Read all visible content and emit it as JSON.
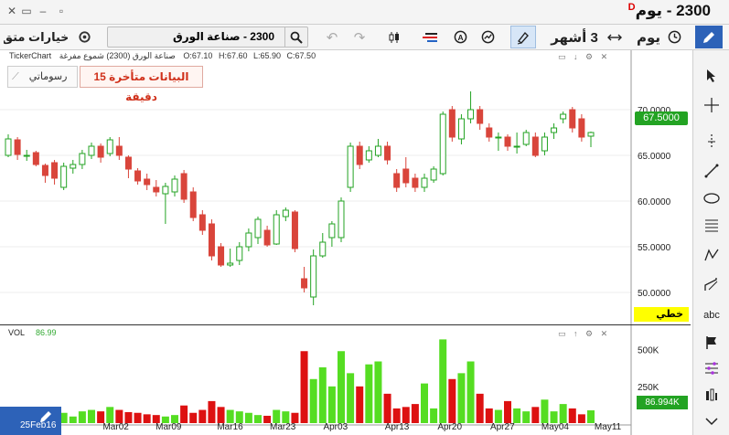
{
  "window": {
    "title": "2300 - يوم",
    "delay_flag": "D",
    "left_tab": "خيارات متق"
  },
  "toolbar": {
    "symbol_text": "2300 - صناعة الورق",
    "period": "3 أشهر",
    "interval": "يوم"
  },
  "chart_info": {
    "source": "TickerChart",
    "desc": "صناعة الورق (2300) شموع مفرغة",
    "open": "O:67.10",
    "high": "H:67.60",
    "low": "L:65.90",
    "close": "C:67.50",
    "delayed_label": "البيانات متأخرة 15 دقيقة",
    "visual_label": "رسوماتي",
    "linear_label": "خطي",
    "vol_label": "VOL",
    "vol_value": "86.99",
    "last_price": "67.5000",
    "last_vol": "86.994K",
    "scroll_text": "25Feb16"
  },
  "colors": {
    "up": "#23a323",
    "down": "#d9453b",
    "vol_up": "#55dd22",
    "vol_down": "#dd1111",
    "accent": "#2d62b8"
  },
  "chart_data": {
    "type": "candlestick",
    "y_ticks": [
      "70.0000",
      "65.0000",
      "60.0000",
      "55.0000",
      "50.0000"
    ],
    "y_range": [
      46.5,
      72.5
    ],
    "vol_ticks": [
      "500K",
      "250K"
    ],
    "vol_range": [
      0,
      560
    ],
    "x_ticks": [
      "Mar02",
      "Mar09",
      "Mar16",
      "Mar23",
      "Apr03",
      "Apr13",
      "Apr20",
      "Apr27",
      "May04",
      "May11"
    ],
    "candles": [
      {
        "o": 65.0,
        "c": 66.8,
        "h": 67.3,
        "l": 64.8,
        "v": 40
      },
      {
        "o": 66.7,
        "c": 65.1,
        "h": 67.0,
        "l": 64.5,
        "v": 45
      },
      {
        "o": 65.0,
        "c": 65.0,
        "h": 65.6,
        "l": 64.4,
        "v": 30
      },
      {
        "o": 65.3,
        "c": 64.0,
        "h": 65.5,
        "l": 63.8,
        "v": 35
      },
      {
        "o": 63.9,
        "c": 62.8,
        "h": 64.1,
        "l": 62.0,
        "v": 60
      },
      {
        "o": 64.2,
        "c": 62.5,
        "h": 64.5,
        "l": 61.8,
        "v": 50
      },
      {
        "o": 61.5,
        "c": 63.8,
        "h": 64.2,
        "l": 61.2,
        "v": 70
      },
      {
        "o": 63.6,
        "c": 64.0,
        "h": 64.5,
        "l": 63.0,
        "v": 45
      },
      {
        "o": 64.0,
        "c": 65.2,
        "h": 65.6,
        "l": 63.5,
        "v": 80
      },
      {
        "o": 65.0,
        "c": 66.0,
        "h": 66.4,
        "l": 64.6,
        "v": 90
      },
      {
        "o": 66.0,
        "c": 64.8,
        "h": 66.3,
        "l": 64.2,
        "v": 80
      },
      {
        "o": 65.2,
        "c": 66.7,
        "h": 67.0,
        "l": 64.9,
        "v": 110
      },
      {
        "o": 66.0,
        "c": 65.0,
        "h": 67.0,
        "l": 64.5,
        "v": 90
      },
      {
        "o": 64.8,
        "c": 63.5,
        "h": 65.0,
        "l": 62.5,
        "v": 75
      },
      {
        "o": 63.3,
        "c": 62.2,
        "h": 63.6,
        "l": 61.8,
        "v": 70
      },
      {
        "o": 62.4,
        "c": 61.8,
        "h": 63.0,
        "l": 61.2,
        "v": 60
      },
      {
        "o": 61.5,
        "c": 61.0,
        "h": 62.3,
        "l": 60.5,
        "v": 55
      },
      {
        "o": 60.8,
        "c": 61.6,
        "h": 62.0,
        "l": 57.5,
        "v": 45
      },
      {
        "o": 61.0,
        "c": 62.4,
        "h": 62.8,
        "l": 60.5,
        "v": 55
      },
      {
        "o": 63.0,
        "c": 60.2,
        "h": 63.4,
        "l": 59.8,
        "v": 120
      },
      {
        "o": 61.0,
        "c": 58.2,
        "h": 61.5,
        "l": 57.8,
        "v": 70
      },
      {
        "o": 58.5,
        "c": 56.8,
        "h": 59.0,
        "l": 56.3,
        "v": 90
      },
      {
        "o": 57.5,
        "c": 54.0,
        "h": 58.0,
        "l": 53.5,
        "v": 150
      },
      {
        "o": 55.0,
        "c": 53.0,
        "h": 55.4,
        "l": 52.8,
        "v": 110
      },
      {
        "o": 53.0,
        "c": 53.2,
        "h": 54.8,
        "l": 52.8,
        "v": 90
      },
      {
        "o": 53.5,
        "c": 55.0,
        "h": 55.5,
        "l": 53.0,
        "v": 80
      },
      {
        "o": 55.0,
        "c": 56.5,
        "h": 57.0,
        "l": 54.5,
        "v": 70
      },
      {
        "o": 56.0,
        "c": 58.0,
        "h": 58.3,
        "l": 55.3,
        "v": 55
      },
      {
        "o": 56.8,
        "c": 55.2,
        "h": 57.3,
        "l": 55.0,
        "v": 50
      },
      {
        "o": 55.3,
        "c": 58.5,
        "h": 59.0,
        "l": 55.2,
        "v": 90
      },
      {
        "o": 58.3,
        "c": 59.0,
        "h": 59.3,
        "l": 57.8,
        "v": 80
      },
      {
        "o": 58.8,
        "c": 54.8,
        "h": 59.0,
        "l": 54.4,
        "v": 70
      },
      {
        "o": 51.5,
        "c": 50.5,
        "h": 52.8,
        "l": 50.0,
        "v": 490
      },
      {
        "o": 49.5,
        "c": 54.0,
        "h": 54.7,
        "l": 48.6,
        "v": 300
      },
      {
        "o": 54.0,
        "c": 55.5,
        "h": 56.5,
        "l": 53.8,
        "v": 380
      },
      {
        "o": 56.0,
        "c": 57.5,
        "h": 57.8,
        "l": 55.0,
        "v": 250
      },
      {
        "o": 56.0,
        "c": 60.0,
        "h": 60.4,
        "l": 55.5,
        "v": 490
      },
      {
        "o": 61.5,
        "c": 66.0,
        "h": 66.4,
        "l": 61.0,
        "v": 340
      },
      {
        "o": 66.0,
        "c": 64.0,
        "h": 66.5,
        "l": 63.5,
        "v": 250
      },
      {
        "o": 64.5,
        "c": 65.5,
        "h": 66.0,
        "l": 64.2,
        "v": 400
      },
      {
        "o": 65.0,
        "c": 66.0,
        "h": 66.8,
        "l": 64.8,
        "v": 420
      },
      {
        "o": 66.0,
        "c": 64.5,
        "h": 66.5,
        "l": 64.0,
        "v": 200
      },
      {
        "o": 63.0,
        "c": 61.5,
        "h": 63.5,
        "l": 61.0,
        "v": 100
      },
      {
        "o": 63.5,
        "c": 62.0,
        "h": 64.8,
        "l": 61.5,
        "v": 110
      },
      {
        "o": 62.5,
        "c": 61.5,
        "h": 63.0,
        "l": 61.0,
        "v": 130
      },
      {
        "o": 61.5,
        "c": 62.5,
        "h": 63.0,
        "l": 61.0,
        "v": 270
      },
      {
        "o": 62.3,
        "c": 63.5,
        "h": 63.8,
        "l": 62.0,
        "v": 100
      },
      {
        "o": 63.0,
        "c": 69.5,
        "h": 69.8,
        "l": 62.8,
        "v": 570
      },
      {
        "o": 70.0,
        "c": 67.0,
        "h": 70.4,
        "l": 66.5,
        "v": 300
      },
      {
        "o": 66.8,
        "c": 69.0,
        "h": 69.5,
        "l": 66.2,
        "v": 340
      },
      {
        "o": 69.0,
        "c": 70.0,
        "h": 72.0,
        "l": 68.5,
        "v": 420
      },
      {
        "o": 70.0,
        "c": 68.5,
        "h": 70.4,
        "l": 67.8,
        "v": 200
      },
      {
        "o": 68.0,
        "c": 67.0,
        "h": 68.5,
        "l": 66.5,
        "v": 100
      },
      {
        "o": 67.0,
        "c": 67.0,
        "h": 67.5,
        "l": 65.5,
        "v": 90
      },
      {
        "o": 67.0,
        "c": 66.0,
        "h": 67.3,
        "l": 65.5,
        "v": 150
      },
      {
        "o": 66.0,
        "c": 66.0,
        "h": 67.5,
        "l": 65.2,
        "v": 100
      },
      {
        "o": 66.2,
        "c": 67.5,
        "h": 67.8,
        "l": 66.0,
        "v": 80
      },
      {
        "o": 67.0,
        "c": 65.0,
        "h": 67.5,
        "l": 64.8,
        "v": 110
      },
      {
        "o": 65.5,
        "c": 67.0,
        "h": 67.5,
        "l": 65.0,
        "v": 160
      },
      {
        "o": 67.5,
        "c": 68.0,
        "h": 68.5,
        "l": 66.8,
        "v": 80
      },
      {
        "o": 69.0,
        "c": 69.5,
        "h": 69.8,
        "l": 68.5,
        "v": 130
      },
      {
        "o": 70.0,
        "c": 68.0,
        "h": 70.3,
        "l": 67.5,
        "v": 100
      },
      {
        "o": 69.0,
        "c": 67.0,
        "h": 69.5,
        "l": 66.5,
        "v": 60
      },
      {
        "o": 67.1,
        "c": 67.5,
        "h": 67.6,
        "l": 65.9,
        "v": 87
      }
    ]
  }
}
